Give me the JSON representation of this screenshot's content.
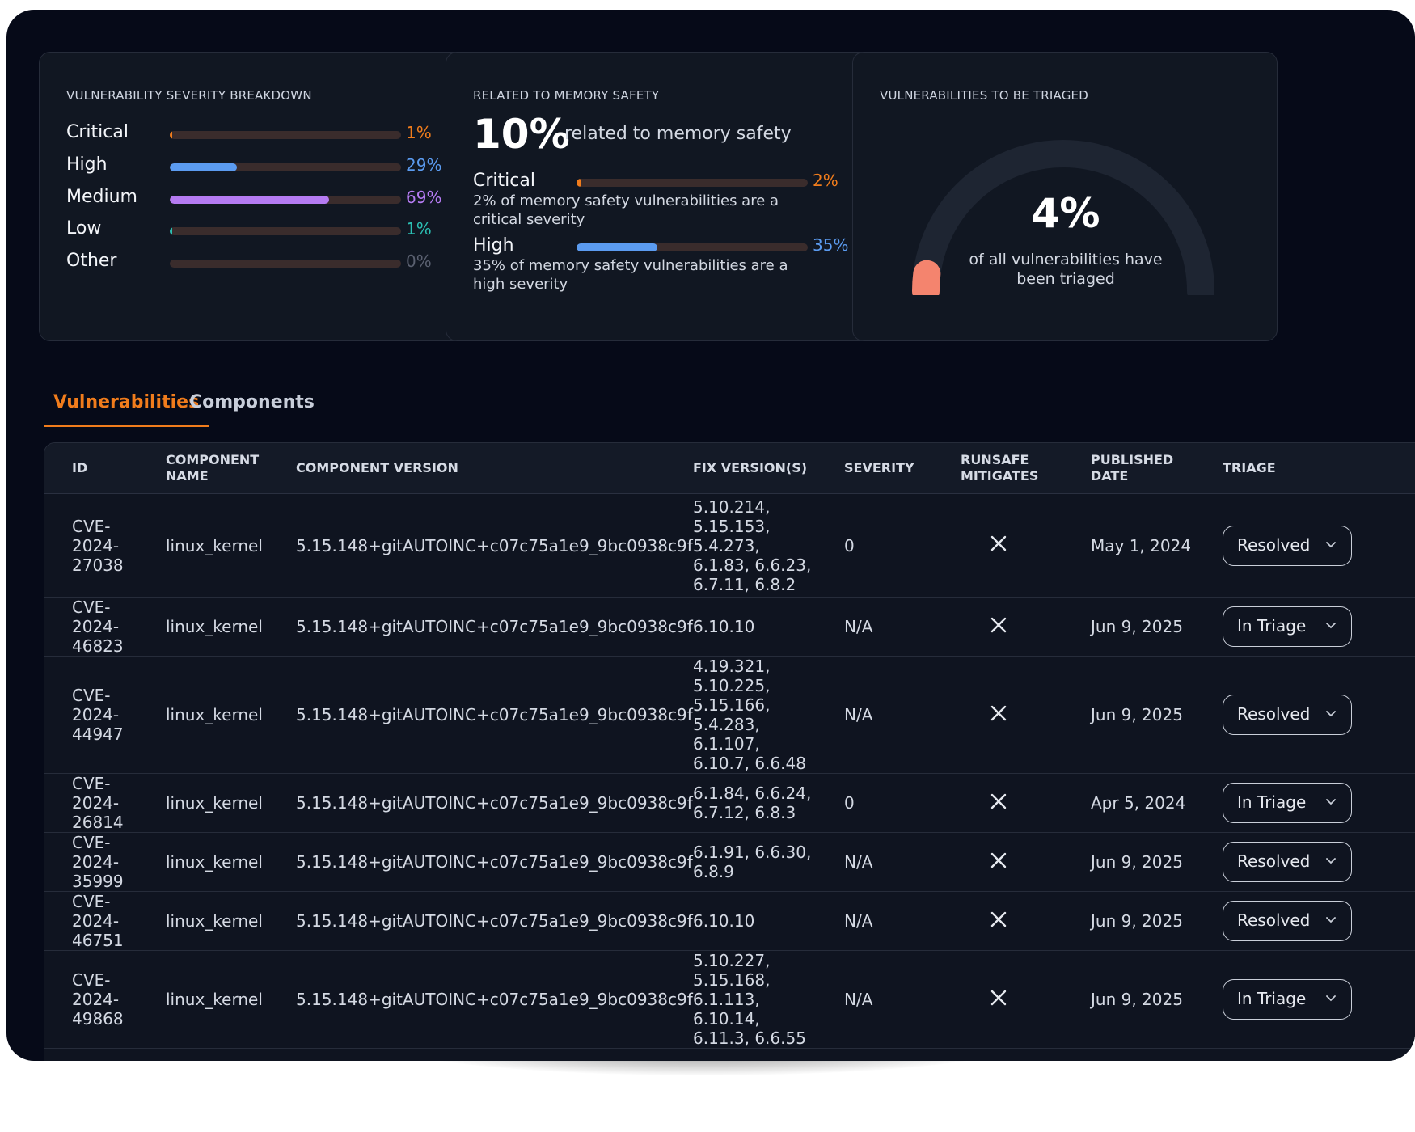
{
  "severity_card": {
    "title": "VULNERABILITY SEVERITY BREAKDOWN",
    "rows": [
      {
        "label": "Critical",
        "pct_text": "1%",
        "value": 1,
        "color": "#f07c1c"
      },
      {
        "label": "High",
        "pct_text": "29%",
        "value": 29,
        "color": "#5b9bf0"
      },
      {
        "label": "Medium",
        "pct_text": "69%",
        "value": 69,
        "color": "#b57bf2"
      },
      {
        "label": "Low",
        "pct_text": "1%",
        "value": 1,
        "color": "#2bbfb3"
      },
      {
        "label": "Other",
        "pct_text": "0%",
        "value": 0,
        "color": "#6b7180"
      }
    ]
  },
  "memory_card": {
    "title": "RELATED TO MEMORY SAFETY",
    "big_value": "10%",
    "big_desc": "related to memory safety",
    "rows": [
      {
        "label": "Critical",
        "pct_text": "2%",
        "value": 2,
        "color": "#f07c1c",
        "desc": "2% of memory safety vulnerabilities are a critical severity"
      },
      {
        "label": "High",
        "pct_text": "35%",
        "value": 35,
        "color": "#5b9bf0",
        "desc": "35% of memory safety vulnerabilities are a high severity"
      }
    ]
  },
  "triage_card": {
    "title": "VULNERABILITIES TO BE TRIAGED",
    "value_text": "4%",
    "value": 4,
    "desc": "of all vulnerabilities have been triaged",
    "accent": "#f4846e"
  },
  "tabs": [
    {
      "label": "Vulnerabilities",
      "active": true
    },
    {
      "label": "Components",
      "active": false
    }
  ],
  "table": {
    "headers": {
      "id": "ID",
      "component_name": "COMPONENT NAME",
      "component_version": "COMPONENT VERSION",
      "fix_versions": "FIX VERSION(S)",
      "severity": "SEVERITY",
      "runsafe_mitigates": "RUNSAFE MITIGATES",
      "published_date": "PUBLISHED DATE",
      "triage": "TRIAGE"
    },
    "rows": [
      {
        "id": "CVE-2024-27038",
        "component": "linux_kernel",
        "version": "5.15.148+gitAUTOINC+c07c75a1e9_9bc0938c9f",
        "fix": "5.10.214, 5.15.153, 5.4.273, 6.1.83, 6.6.23, 6.7.11, 6.8.2",
        "severity": "0",
        "mitigates_icon": "close-icon",
        "published": "May 1, 2024",
        "triage": "Resolved"
      },
      {
        "id": "CVE-2024-46823",
        "component": "linux_kernel",
        "version": "5.15.148+gitAUTOINC+c07c75a1e9_9bc0938c9f",
        "fix": "6.10.10",
        "severity": "N/A",
        "mitigates_icon": "close-icon",
        "published": "Jun 9, 2025",
        "triage": "In Triage"
      },
      {
        "id": "CVE-2024-44947",
        "component": "linux_kernel",
        "version": "5.15.148+gitAUTOINC+c07c75a1e9_9bc0938c9f",
        "fix": "4.19.321, 5.10.225, 5.15.166, 5.4.283, 6.1.107, 6.10.7, 6.6.48",
        "severity": "N/A",
        "mitigates_icon": "close-icon",
        "published": "Jun 9, 2025",
        "triage": "Resolved"
      },
      {
        "id": "CVE-2024-26814",
        "component": "linux_kernel",
        "version": "5.15.148+gitAUTOINC+c07c75a1e9_9bc0938c9f",
        "fix": "6.1.84, 6.6.24, 6.7.12, 6.8.3",
        "severity": "0",
        "mitigates_icon": "close-icon",
        "published": "Apr 5, 2024",
        "triage": "In Triage"
      },
      {
        "id": "CVE-2024-35999",
        "component": "linux_kernel",
        "version": "5.15.148+gitAUTOINC+c07c75a1e9_9bc0938c9f",
        "fix": "6.1.91, 6.6.30, 6.8.9",
        "severity": "N/A",
        "mitigates_icon": "close-icon",
        "published": "Jun 9, 2025",
        "triage": "Resolved"
      },
      {
        "id": "CVE-2024-46751",
        "component": "linux_kernel",
        "version": "5.15.148+gitAUTOINC+c07c75a1e9_9bc0938c9f",
        "fix": "6.10.10",
        "severity": "N/A",
        "mitigates_icon": "close-icon",
        "published": "Jun 9, 2025",
        "triage": "Resolved"
      },
      {
        "id": "CVE-2024-49868",
        "component": "linux_kernel",
        "version": "5.15.148+gitAUTOINC+c07c75a1e9_9bc0938c9f",
        "fix": "5.10.227, 5.15.168, 6.1.113, 6.10.14, 6.11.3, 6.6.55",
        "severity": "N/A",
        "mitigates_icon": "close-icon",
        "published": "Jun 9, 2025",
        "triage": "In Triage"
      }
    ]
  }
}
